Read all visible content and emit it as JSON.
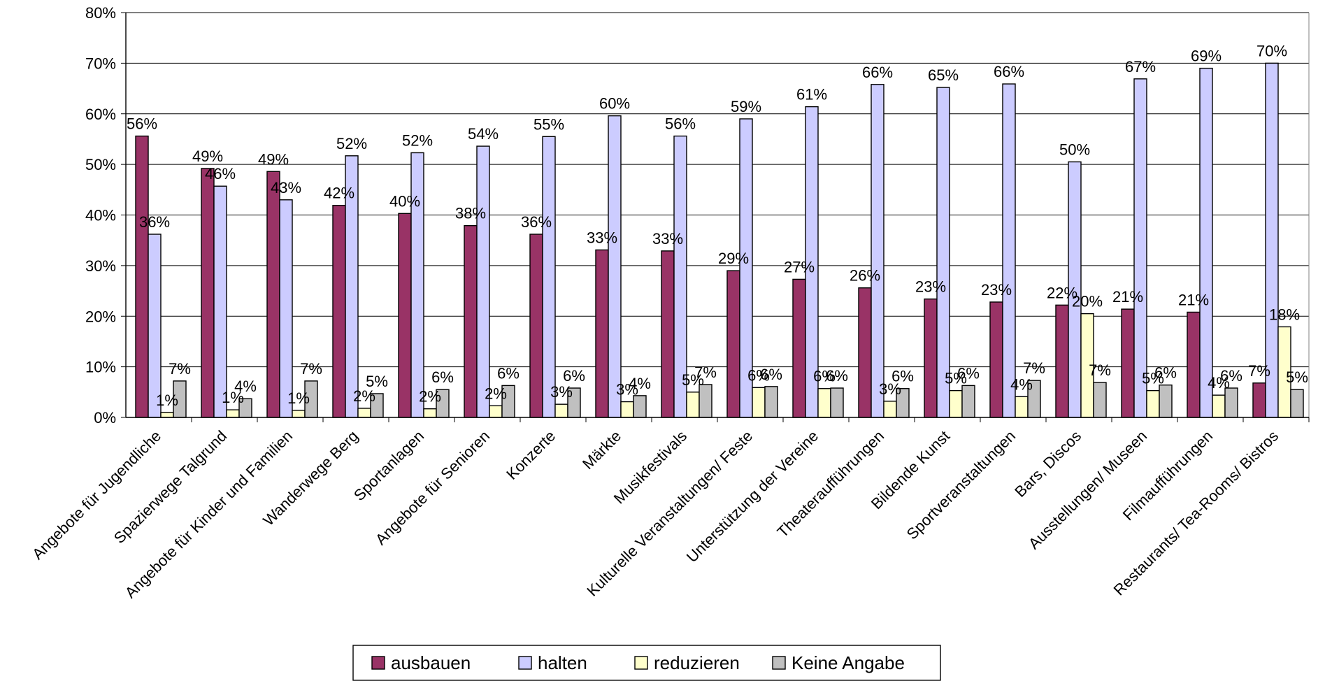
{
  "chart_data": {
    "type": "bar",
    "title": "",
    "xlabel": "",
    "ylabel": "",
    "ylim": [
      0,
      80
    ],
    "y_ticks": [
      "0%",
      "10%",
      "20%",
      "30%",
      "40%",
      "50%",
      "60%",
      "70%",
      "80%"
    ],
    "grid": true,
    "legend_position": "bottom",
    "categories": [
      "Angebote für Jugendliche",
      "Spazierwege Talgrund",
      "Angebote für Kinder und Familien",
      "Wanderwege Berg",
      "Sportanlagen",
      "Angebote für Senioren",
      "Konzerte",
      "Märkte",
      "Musikfestivals",
      "Kulturelle Veranstaltungen/ Feste",
      "Unterstützung der Vereine",
      "Theateraufführungen",
      "Bildende Kunst",
      "Sportveranstaltungen",
      "Bars, Discos",
      "Ausstellungen/ Museen",
      "Filmaufführungen",
      "Restaurants/ Tea-Rooms/ Bistros"
    ],
    "series": [
      {
        "name": "ausbauen",
        "color": "#993366",
        "values": [
          55.6,
          49.2,
          48.6,
          41.9,
          40.3,
          37.9,
          36.2,
          33.1,
          32.9,
          29.0,
          27.3,
          25.6,
          23.4,
          22.8,
          22.2,
          21.4,
          20.8,
          6.8
        ],
        "labels": [
          "56%",
          "49%",
          "49%",
          "42%",
          "40%",
          "38%",
          "36%",
          "33%",
          "33%",
          "29%",
          "27%",
          "26%",
          "23%",
          "23%",
          "22%",
          "21%",
          "21%",
          "7%"
        ]
      },
      {
        "name": "halten",
        "color": "#CCCCFF",
        "values": [
          36.2,
          45.7,
          43.0,
          51.7,
          52.3,
          53.6,
          55.5,
          59.6,
          55.6,
          59.0,
          61.4,
          65.8,
          65.2,
          65.9,
          50.5,
          66.9,
          69.0,
          70.0
        ],
        "labels": [
          "36%",
          "46%",
          "43%",
          "52%",
          "52%",
          "54%",
          "55%",
          "60%",
          "56%",
          "59%",
          "61%",
          "66%",
          "65%",
          "66%",
          "50%",
          "67%",
          "69%",
          "70%"
        ]
      },
      {
        "name": "reduzieren",
        "color": "#FFFFCC",
        "values": [
          1.0,
          1.5,
          1.4,
          1.8,
          1.7,
          2.3,
          2.6,
          3.1,
          5.0,
          5.9,
          5.7,
          3.2,
          5.3,
          4.1,
          20.5,
          5.3,
          4.4,
          17.9
        ],
        "labels": [
          "1%",
          "1%",
          "1%",
          "2%",
          "2%",
          "2%",
          "3%",
          "3%",
          "5%",
          "6%",
          "6%",
          "3%",
          "5%",
          "4%",
          "20%",
          "5%",
          "4%",
          "18%"
        ]
      },
      {
        "name": "Keine Angabe",
        "color": "#C0C0C0",
        "values": [
          7.2,
          3.7,
          7.2,
          4.7,
          5.5,
          6.3,
          5.8,
          4.3,
          6.5,
          6.1,
          5.8,
          5.7,
          6.3,
          7.3,
          6.9,
          6.4,
          5.8,
          5.5
        ],
        "labels": [
          "7%",
          "4%",
          "7%",
          "5%",
          "6%",
          "6%",
          "6%",
          "4%",
          "7%",
          "6%",
          "6%",
          "6%",
          "6%",
          "7%",
          "7%",
          "6%",
          "6%",
          "5%"
        ]
      }
    ]
  }
}
